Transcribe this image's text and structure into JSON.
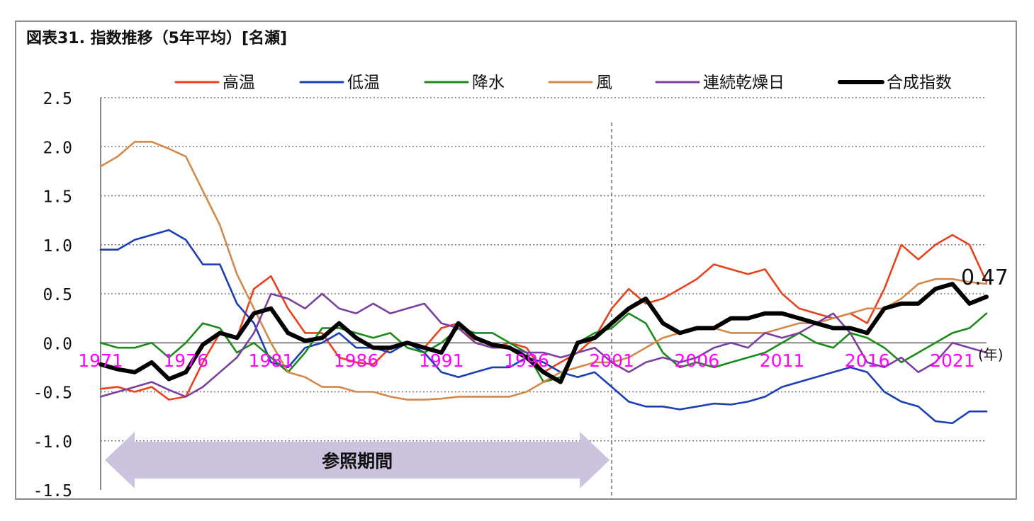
{
  "chart_data": {
    "type": "line",
    "title": "図表31. 指数推移（5年平均）[名瀬]",
    "x_unit": "(年)",
    "ylim": [
      -1.5,
      2.5
    ],
    "xlim": [
      1971,
      2023
    ],
    "y_ticks": [
      2.5,
      2.0,
      1.5,
      1.0,
      0.5,
      0.0,
      -0.5,
      -1.0,
      -1.5
    ],
    "y_tick_labels": [
      "2.5",
      "2.0",
      "1.5",
      "1.0",
      "0.5",
      "0.0",
      "-0.5",
      "-1.0",
      "-1.5"
    ],
    "x_ticks": [
      1971,
      1976,
      1981,
      1986,
      1991,
      1996,
      2001,
      2006,
      2011,
      2016,
      2021
    ],
    "x_tick_labels": [
      "1971",
      "1976",
      "1981",
      "1986",
      "1991",
      "1996",
      "2001",
      "2006",
      "2011",
      "2016",
      "2021"
    ],
    "grid": "horizontal-dotted",
    "legend_position": "top",
    "divider_x": 2001,
    "reference_period": {
      "label": "参照期間",
      "start": 1971,
      "end": 2001
    },
    "end_label": "0.47",
    "series": [
      {
        "name": "高温",
        "color": "#e8421c",
        "x": [
          1971,
          1972,
          1973,
          1974,
          1975,
          1976,
          1977,
          1978,
          1979,
          1980,
          1981,
          1982,
          1983,
          1984,
          1985,
          1986,
          1987,
          1988,
          1989,
          1990,
          1991,
          1992,
          1993,
          1994,
          1995,
          1996,
          1997,
          1998,
          1999,
          2000,
          2001,
          2002,
          2003,
          2004,
          2005,
          2006,
          2007,
          2008,
          2009,
          2010,
          2011,
          2012,
          2013,
          2014,
          2015,
          2016,
          2017,
          2018,
          2019,
          2020,
          2021,
          2022,
          2023
        ],
        "y": [
          -0.47,
          -0.45,
          -0.5,
          -0.45,
          -0.58,
          -0.55,
          -0.2,
          0.1,
          0.05,
          0.55,
          0.68,
          0.35,
          0.1,
          0.1,
          -0.15,
          -0.2,
          -0.22,
          -0.05,
          0.0,
          -0.05,
          0.15,
          0.2,
          0.0,
          -0.05,
          0.0,
          -0.05,
          -0.3,
          -0.2,
          -0.1,
          0.05,
          0.35,
          0.55,
          0.4,
          0.45,
          0.55,
          0.65,
          0.8,
          0.75,
          0.7,
          0.75,
          0.5,
          0.35,
          0.3,
          0.25,
          0.3,
          0.2,
          0.55,
          1.0,
          0.85,
          1.0,
          1.1,
          1.0,
          0.62
        ]
      },
      {
        "name": "低温",
        "color": "#1a3fb4",
        "x": [
          1971,
          1972,
          1973,
          1974,
          1975,
          1976,
          1977,
          1978,
          1979,
          1980,
          1981,
          1982,
          1983,
          1984,
          1985,
          1986,
          1987,
          1988,
          1989,
          1990,
          1991,
          1992,
          1993,
          1994,
          1995,
          1996,
          1997,
          1998,
          1999,
          2000,
          2001,
          2002,
          2003,
          2004,
          2005,
          2006,
          2007,
          2008,
          2009,
          2010,
          2011,
          2012,
          2013,
          2014,
          2015,
          2016,
          2017,
          2018,
          2019,
          2020,
          2021,
          2022,
          2023
        ],
        "y": [
          0.95,
          0.95,
          1.05,
          1.1,
          1.15,
          1.05,
          0.8,
          0.8,
          0.4,
          0.2,
          -0.2,
          -0.25,
          -0.05,
          0.0,
          0.1,
          -0.05,
          -0.05,
          -0.1,
          0.0,
          -0.1,
          -0.3,
          -0.35,
          -0.3,
          -0.25,
          -0.25,
          -0.15,
          -0.2,
          -0.3,
          -0.35,
          -0.3,
          -0.45,
          -0.6,
          -0.65,
          -0.65,
          -0.68,
          -0.65,
          -0.62,
          -0.63,
          -0.6,
          -0.55,
          -0.45,
          -0.4,
          -0.35,
          -0.3,
          -0.25,
          -0.3,
          -0.5,
          -0.6,
          -0.65,
          -0.8,
          -0.82,
          -0.7,
          -0.7
        ]
      },
      {
        "name": "降水",
        "color": "#1a8a1a",
        "x": [
          1971,
          1972,
          1973,
          1974,
          1975,
          1976,
          1977,
          1978,
          1979,
          1980,
          1981,
          1982,
          1983,
          1984,
          1985,
          1986,
          1987,
          1988,
          1989,
          1990,
          1991,
          1992,
          1993,
          1994,
          1995,
          1996,
          1997,
          1998,
          1999,
          2000,
          2001,
          2002,
          2003,
          2004,
          2005,
          2006,
          2007,
          2008,
          2009,
          2010,
          2011,
          2012,
          2013,
          2014,
          2015,
          2016,
          2017,
          2018,
          2019,
          2020,
          2021,
          2022,
          2023
        ],
        "y": [
          0.0,
          -0.05,
          -0.05,
          0.0,
          -0.15,
          0.0,
          0.2,
          0.15,
          -0.1,
          0.0,
          -0.15,
          -0.3,
          -0.1,
          0.15,
          0.15,
          0.1,
          0.05,
          0.1,
          -0.05,
          -0.1,
          0.0,
          0.15,
          0.1,
          0.1,
          0.0,
          -0.1,
          -0.4,
          -0.35,
          0.0,
          0.1,
          0.15,
          0.3,
          0.2,
          -0.1,
          -0.25,
          -0.2,
          -0.25,
          -0.2,
          -0.15,
          -0.1,
          0.0,
          0.1,
          0.0,
          -0.05,
          0.1,
          0.05,
          -0.05,
          -0.2,
          -0.1,
          0.0,
          0.1,
          0.15,
          0.3
        ]
      },
      {
        "name": "風",
        "color": "#d4884a",
        "x": [
          1971,
          1972,
          1973,
          1974,
          1975,
          1976,
          1977,
          1978,
          1979,
          1980,
          1981,
          1982,
          1983,
          1984,
          1985,
          1986,
          1987,
          1988,
          1989,
          1990,
          1991,
          1992,
          1993,
          1994,
          1995,
          1996,
          1997,
          1998,
          1999,
          2000,
          2001,
          2002,
          2003,
          2004,
          2005,
          2006,
          2007,
          2008,
          2009,
          2010,
          2011,
          2012,
          2013,
          2014,
          2015,
          2016,
          2017,
          2018,
          2019,
          2020,
          2021,
          2022,
          2023
        ],
        "y": [
          1.8,
          1.9,
          2.05,
          2.05,
          1.98,
          1.9,
          1.55,
          1.2,
          0.7,
          0.35,
          0.0,
          -0.3,
          -0.35,
          -0.45,
          -0.45,
          -0.5,
          -0.5,
          -0.55,
          -0.58,
          -0.58,
          -0.57,
          -0.55,
          -0.55,
          -0.55,
          -0.55,
          -0.5,
          -0.4,
          -0.3,
          -0.25,
          -0.2,
          -0.2,
          -0.15,
          -0.05,
          0.05,
          0.1,
          0.15,
          0.15,
          0.1,
          0.1,
          0.1,
          0.15,
          0.2,
          0.2,
          0.25,
          0.3,
          0.35,
          0.35,
          0.45,
          0.6,
          0.65,
          0.65,
          0.62,
          0.6
        ]
      },
      {
        "name": "連続乾燥日",
        "color": "#7b3fa0",
        "x": [
          1971,
          1972,
          1973,
          1974,
          1975,
          1976,
          1977,
          1978,
          1979,
          1980,
          1981,
          1982,
          1983,
          1984,
          1985,
          1986,
          1987,
          1988,
          1989,
          1990,
          1991,
          1992,
          1993,
          1994,
          1995,
          1996,
          1997,
          1998,
          1999,
          2000,
          2001,
          2002,
          2003,
          2004,
          2005,
          2006,
          2007,
          2008,
          2009,
          2010,
          2011,
          2012,
          2013,
          2014,
          2015,
          2016,
          2017,
          2018,
          2019,
          2020,
          2021,
          2022,
          2023
        ],
        "y": [
          -0.55,
          -0.5,
          -0.45,
          -0.4,
          -0.48,
          -0.55,
          -0.45,
          -0.3,
          -0.15,
          0.1,
          0.5,
          0.45,
          0.35,
          0.5,
          0.35,
          0.3,
          0.4,
          0.3,
          0.35,
          0.4,
          0.2,
          0.15,
          0.0,
          -0.05,
          -0.05,
          -0.1,
          -0.1,
          -0.15,
          -0.1,
          -0.05,
          -0.2,
          -0.3,
          -0.2,
          -0.15,
          -0.2,
          -0.15,
          -0.05,
          0.0,
          -0.05,
          0.1,
          0.05,
          0.1,
          0.2,
          0.3,
          0.1,
          -0.2,
          -0.25,
          -0.15,
          -0.3,
          -0.2,
          0.0,
          -0.05,
          -0.1
        ]
      },
      {
        "name": "合成指数",
        "color": "#000000",
        "x": [
          1971,
          1972,
          1973,
          1974,
          1975,
          1976,
          1977,
          1978,
          1979,
          1980,
          1981,
          1982,
          1983,
          1984,
          1985,
          1986,
          1987,
          1988,
          1989,
          1990,
          1991,
          1992,
          1993,
          1994,
          1995,
          1996,
          1997,
          1998,
          1999,
          2000,
          2001,
          2002,
          2003,
          2004,
          2005,
          2006,
          2007,
          2008,
          2009,
          2010,
          2011,
          2012,
          2013,
          2014,
          2015,
          2016,
          2017,
          2018,
          2019,
          2020,
          2021,
          2022,
          2023
        ],
        "y": [
          -0.22,
          -0.27,
          -0.3,
          -0.2,
          -0.37,
          -0.3,
          -0.02,
          0.1,
          0.05,
          0.3,
          0.35,
          0.1,
          0.02,
          0.05,
          0.2,
          0.05,
          -0.05,
          -0.05,
          0.0,
          -0.05,
          -0.1,
          0.2,
          0.05,
          -0.02,
          -0.05,
          -0.15,
          -0.3,
          -0.4,
          0.0,
          0.05,
          0.2,
          0.35,
          0.45,
          0.2,
          0.1,
          0.15,
          0.15,
          0.25,
          0.25,
          0.3,
          0.3,
          0.25,
          0.2,
          0.15,
          0.15,
          0.1,
          0.35,
          0.4,
          0.4,
          0.55,
          0.6,
          0.4,
          0.47
        ]
      }
    ]
  }
}
